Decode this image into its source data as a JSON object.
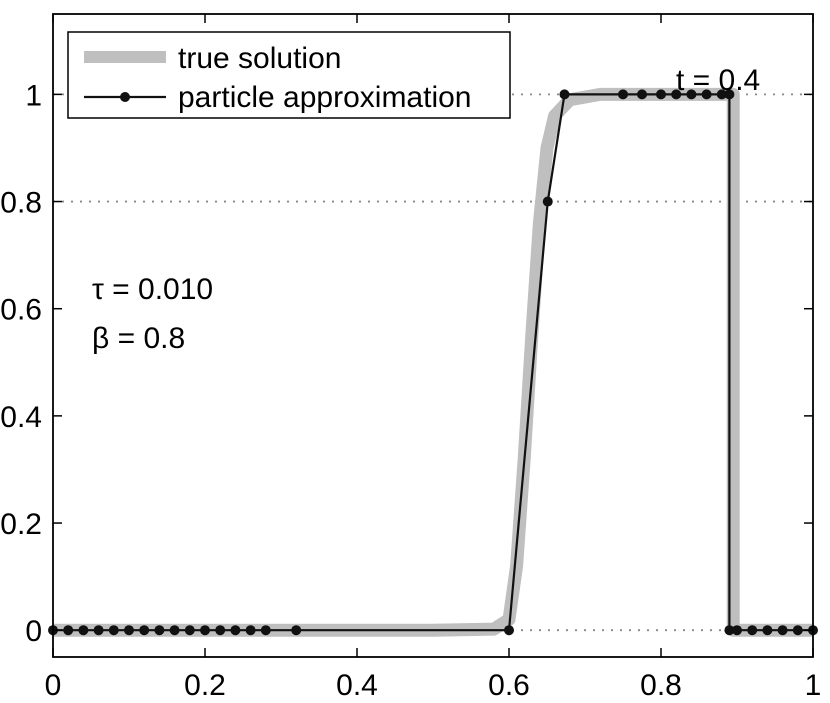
{
  "chart_data": {
    "type": "line",
    "xlim": [
      0,
      1
    ],
    "ylim": [
      -0.05,
      1.15
    ],
    "x_ticks": [
      0,
      0.2,
      0.4,
      0.6,
      0.8,
      1
    ],
    "x_tick_labels": [
      "0",
      "0.2",
      "0.4",
      "0.6",
      "0.8",
      "1"
    ],
    "y_ticks": [
      0,
      0.2,
      0.4,
      0.6,
      0.8,
      1
    ],
    "y_tick_labels": [
      "0",
      "0.2",
      "0.4",
      "0.6",
      "0.8",
      "1"
    ],
    "gridlines_y": [
      0,
      0.8,
      1
    ],
    "legend": {
      "placement": "top-left",
      "entries": [
        "true solution",
        "particle approximation"
      ]
    },
    "annotations": {
      "time_label": "t = 0.4",
      "tau_label": "τ = 0.010",
      "beta_label": "β = 0.8"
    },
    "colors": {
      "true_solution": "#bfbfbf",
      "particle": "#111111",
      "grid": "#888888",
      "axis": "#000000"
    },
    "series": [
      {
        "name": "true solution",
        "points": [
          [
            0,
            0
          ],
          [
            0.5,
            0
          ],
          [
            0.58,
            0.002
          ],
          [
            0.6,
            0.02
          ],
          [
            0.61,
            0.12
          ],
          [
            0.62,
            0.32
          ],
          [
            0.63,
            0.55
          ],
          [
            0.64,
            0.76
          ],
          [
            0.65,
            0.9
          ],
          [
            0.66,
            0.96
          ],
          [
            0.68,
            0.99
          ],
          [
            0.72,
            1
          ],
          [
            0.895,
            1
          ],
          [
            0.895,
            0
          ],
          [
            1,
            0
          ]
        ]
      },
      {
        "name": "particle approximation",
        "points": [
          [
            0,
            0
          ],
          [
            0.02,
            0
          ],
          [
            0.04,
            0
          ],
          [
            0.06,
            0
          ],
          [
            0.08,
            0
          ],
          [
            0.1,
            0
          ],
          [
            0.12,
            0
          ],
          [
            0.14,
            0
          ],
          [
            0.16,
            0
          ],
          [
            0.18,
            0
          ],
          [
            0.2,
            0
          ],
          [
            0.22,
            0
          ],
          [
            0.24,
            0
          ],
          [
            0.26,
            0
          ],
          [
            0.28,
            0
          ],
          [
            0.32,
            0
          ],
          [
            0.6,
            0
          ],
          [
            0.651,
            0.8
          ],
          [
            0.673,
            1
          ],
          [
            0.75,
            1
          ],
          [
            0.775,
            1
          ],
          [
            0.8,
            1
          ],
          [
            0.82,
            1
          ],
          [
            0.84,
            1
          ],
          [
            0.86,
            1
          ],
          [
            0.88,
            1
          ],
          [
            0.89,
            1
          ],
          [
            0.89,
            0
          ],
          [
            0.9,
            0
          ],
          [
            0.92,
            0
          ],
          [
            0.94,
            0
          ],
          [
            0.96,
            0
          ],
          [
            0.98,
            0
          ],
          [
            1,
            0
          ]
        ]
      }
    ]
  }
}
